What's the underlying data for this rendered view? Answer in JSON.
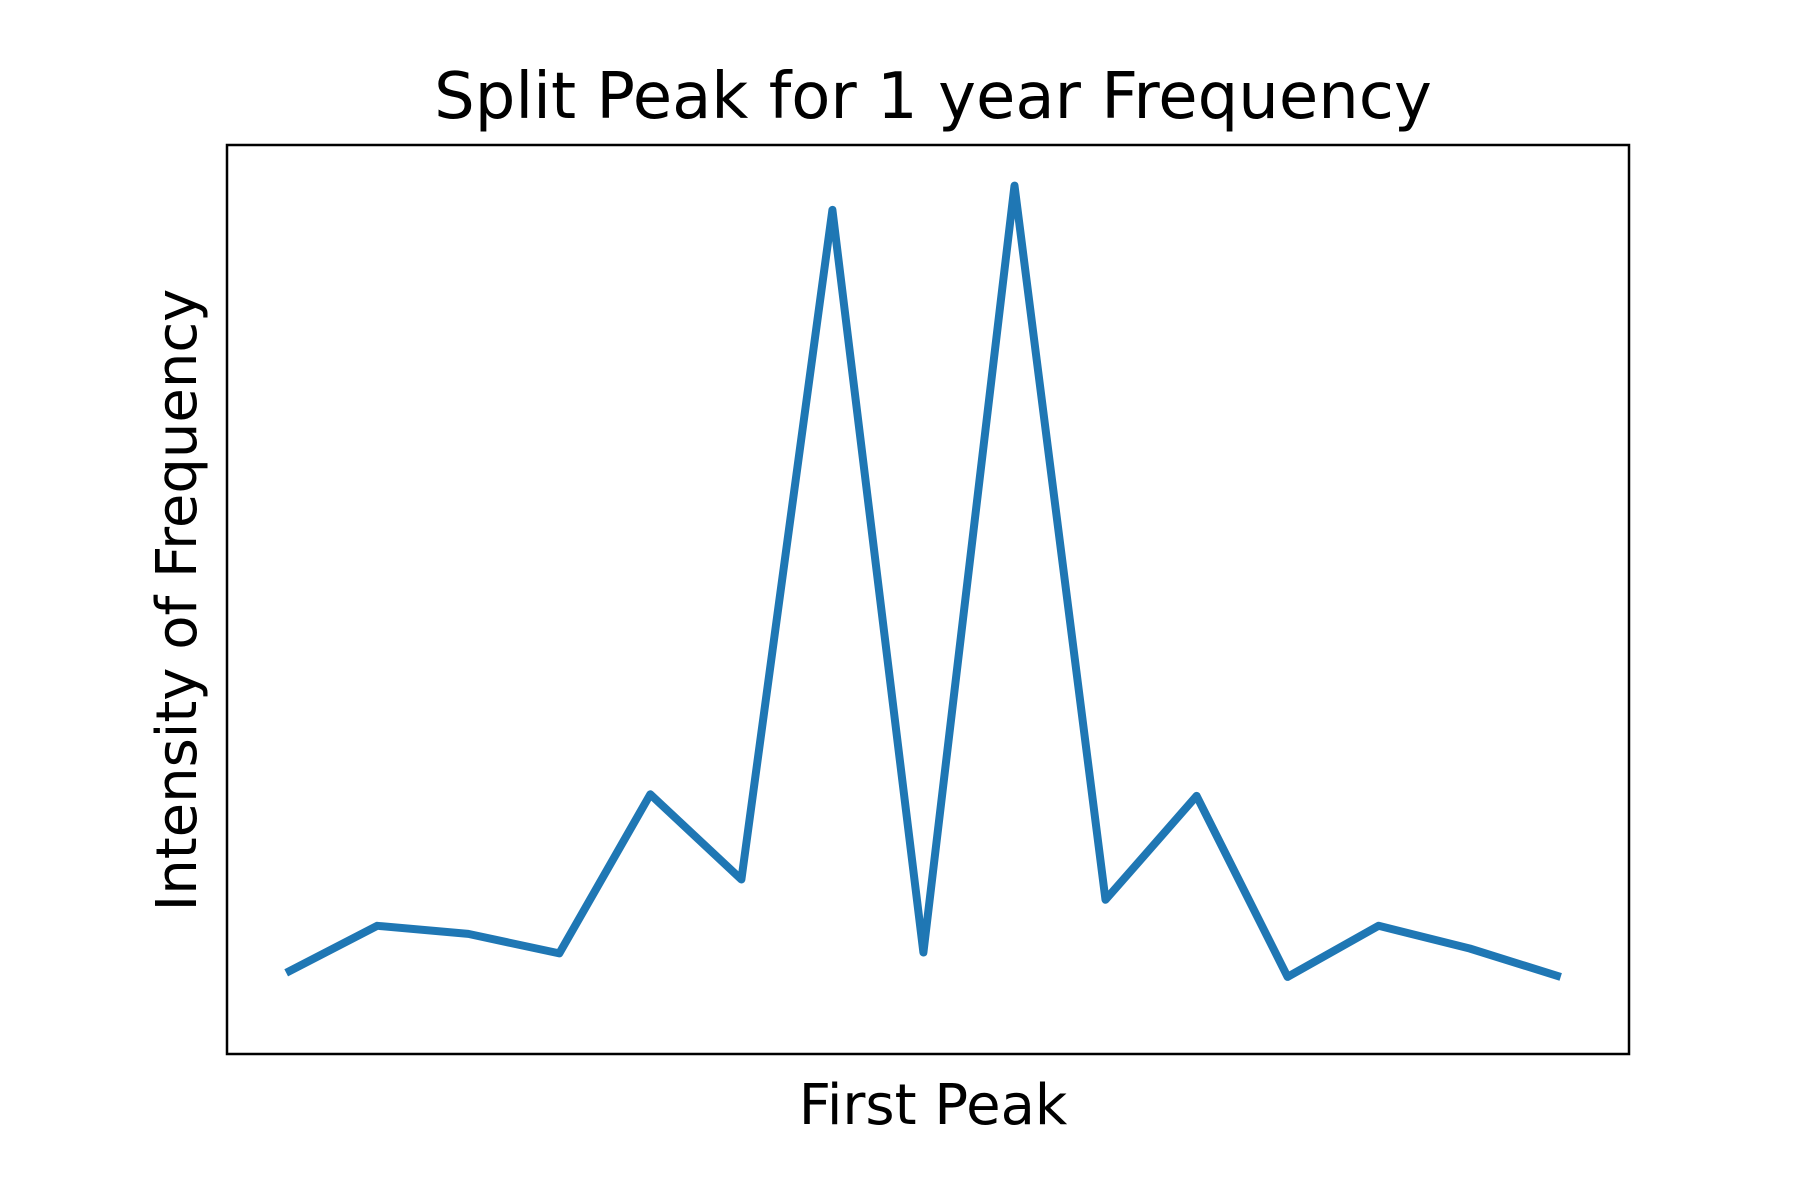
{
  "chart_data": {
    "type": "line",
    "title": "Split Peak for 1 year Frequency",
    "xlabel": "First Peak",
    "ylabel": "Intensity of Frequency",
    "x": [
      0,
      1,
      2,
      3,
      4,
      5,
      6,
      7,
      8,
      9,
      10,
      11,
      12,
      13,
      14
    ],
    "series": [
      {
        "values": [
          0.06,
          0.118,
          0.108,
          0.084,
          0.28,
          0.175,
          1.0,
          0.085,
          1.03,
          0.15,
          0.278,
          0.055,
          0.118,
          0.09,
          0.055
        ]
      }
    ],
    "xlim": [
      -0.65,
      14.75
    ],
    "ylim": [
      -0.04,
      1.08
    ],
    "grid": false,
    "ticks_visible": false,
    "line_color": "#1f77b4",
    "frame_color": "#000000"
  }
}
